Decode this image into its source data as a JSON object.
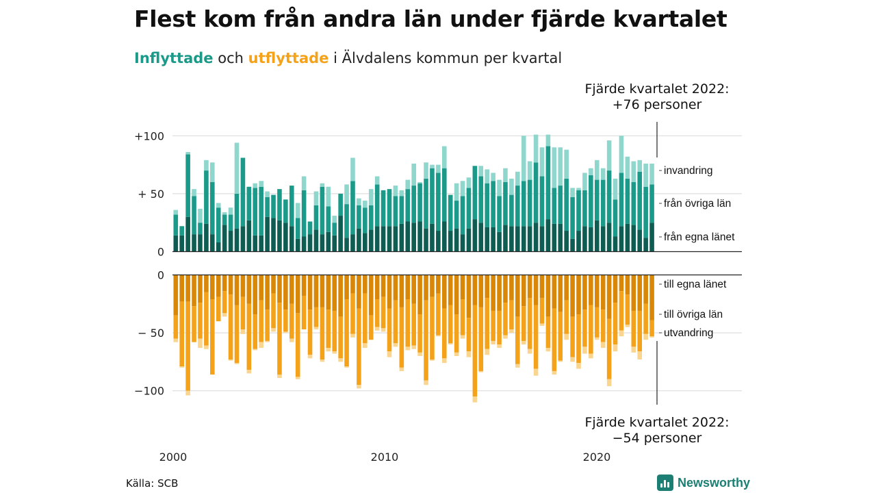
{
  "title": "Flest kom från andra län under fjärde kvartalet",
  "subtitle": {
    "in_word": "Inflyttade",
    "and_word": "och",
    "out_word": "utflyttade",
    "rest": "i Älvdalens kommun per kvartal"
  },
  "annotation_top": {
    "line1": "Fjärde kvartalet 2022:",
    "line2": "+76 personer"
  },
  "annotation_bottom": {
    "line1": "Fjärde kvartalet 2022:",
    "line2": "−54 personer"
  },
  "source": "Källa: SCB",
  "brand": {
    "name": "Newsworthy",
    "icon": "newsworthy-logo-icon",
    "color": "#1d7f74"
  },
  "colors": {
    "in_own": "#0e5c52",
    "in_other": "#1b9a89",
    "in_immigration": "#8fd6cd",
    "out_own": "#d98707",
    "out_other": "#f5a21b",
    "out_emigration": "#f9d58f"
  },
  "chart_data": {
    "type": "bar",
    "stacked": true,
    "grid": true,
    "x_tick_labels": [
      "2000",
      "2010",
      "2020"
    ],
    "top_panel": {
      "y_tick_labels": [
        "+100",
        "+ 50",
        "0"
      ],
      "ylim": [
        0,
        110
      ],
      "series": [
        {
          "name": "från egna länet",
          "values": [
            14,
            14,
            30,
            15,
            15,
            24,
            15,
            8,
            23,
            18,
            20,
            22,
            27,
            14,
            14,
            30,
            29,
            27,
            25,
            22,
            11,
            13,
            15,
            19,
            15,
            17,
            14,
            31,
            12,
            15,
            20,
            16,
            19,
            22,
            22,
            22,
            22,
            24,
            26,
            25,
            26,
            20,
            24,
            18,
            26,
            18,
            20,
            15,
            20,
            28,
            25,
            21,
            21,
            17,
            23,
            22,
            22,
            22,
            22,
            25,
            22,
            28,
            24,
            24,
            18,
            11,
            18,
            22,
            21,
            27,
            22,
            25,
            13,
            22,
            24,
            23,
            19,
            12,
            25
          ]
        },
        {
          "name": "från övriga län",
          "values": [
            18,
            8,
            54,
            33,
            10,
            46,
            45,
            30,
            9,
            14,
            30,
            59,
            29,
            41,
            42,
            17,
            20,
            27,
            20,
            35,
            18,
            40,
            11,
            21,
            41,
            22,
            11,
            19,
            29,
            46,
            20,
            22,
            21,
            36,
            31,
            32,
            26,
            24,
            28,
            32,
            33,
            43,
            48,
            50,
            46,
            31,
            24,
            33,
            35,
            46,
            40,
            38,
            40,
            31,
            37,
            27,
            35,
            39,
            40,
            52,
            43,
            63,
            31,
            33,
            45,
            36,
            35,
            31,
            45,
            35,
            40,
            45,
            32,
            46,
            39,
            37,
            50,
            44,
            33
          ]
        },
        {
          "name": "invandring",
          "values": [
            4,
            0,
            2,
            6,
            12,
            9,
            17,
            4,
            2,
            6,
            44,
            0,
            0,
            4,
            5,
            5,
            0,
            0,
            0,
            0,
            13,
            12,
            0,
            12,
            3,
            17,
            6,
            0,
            17,
            20,
            6,
            6,
            14,
            7,
            0,
            0,
            9,
            5,
            8,
            19,
            1,
            14,
            3,
            7,
            19,
            0,
            15,
            13,
            9,
            0,
            9,
            12,
            7,
            14,
            12,
            14,
            12,
            39,
            16,
            24,
            25,
            10,
            35,
            33,
            25,
            8,
            2,
            15,
            6,
            17,
            10,
            26,
            18,
            32,
            19,
            18,
            10,
            20,
            18
          ]
        }
      ]
    },
    "bottom_panel": {
      "y_tick_labels": [
        "0",
        "− 50",
        "−100"
      ],
      "ylim": [
        -110,
        0
      ],
      "series": [
        {
          "name": "till egna länet",
          "values": [
            -35,
            -23,
            -23,
            -27,
            -24,
            -15,
            -21,
            -19,
            -14,
            -17,
            -26,
            -19,
            -25,
            -34,
            -22,
            -30,
            -16,
            -24,
            -30,
            -25,
            -33,
            -18,
            -30,
            -28,
            -28,
            -30,
            -31,
            -36,
            -21,
            -16,
            -29,
            -16,
            -35,
            -21,
            -19,
            -29,
            -22,
            -28,
            -21,
            -25,
            -34,
            -22,
            -19,
            -16,
            -29,
            -26,
            -34,
            -21,
            -37,
            -26,
            -28,
            -20,
            -31,
            -31,
            -24,
            -22,
            -36,
            -27,
            -20,
            -26,
            -20,
            -36,
            -29,
            -32,
            -22,
            -36,
            -34,
            -30,
            -26,
            -28,
            -30,
            -38,
            -24,
            -14,
            -17,
            -31,
            -31,
            -25,
            -39
          ]
        },
        {
          "name": "till övriga län",
          "values": [
            -20,
            -56,
            -77,
            -31,
            -31,
            -46,
            -65,
            -21,
            -19,
            -56,
            -50,
            -28,
            -57,
            -30,
            -36,
            -27,
            -30,
            -62,
            -19,
            -30,
            -55,
            -29,
            -39,
            -17,
            -45,
            -33,
            -35,
            -36,
            -58,
            -35,
            -66,
            -43,
            -21,
            -24,
            -27,
            -37,
            -37,
            -52,
            -41,
            -36,
            -33,
            -69,
            -54,
            -36,
            -43,
            -33,
            -33,
            -31,
            -29,
            -79,
            -55,
            -44,
            -26,
            -29,
            -28,
            -25,
            -41,
            -30,
            -44,
            -55,
            -22,
            -27,
            -54,
            -42,
            -29,
            -35,
            -42,
            -32,
            -42,
            -26,
            -28,
            -52,
            -36,
            -34,
            -26,
            -31,
            -35,
            -26,
            -14
          ]
        },
        {
          "name": "utvandring",
          "values": [
            -3,
            -1,
            -4,
            0,
            -8,
            -3,
            0,
            0,
            -3,
            -1,
            -1,
            -4,
            -3,
            -1,
            -5,
            -1,
            -3,
            -3,
            -1,
            -3,
            -2,
            0,
            -3,
            -2,
            -2,
            -3,
            -2,
            -3,
            -1,
            -3,
            -3,
            -4,
            0,
            -3,
            -3,
            -5,
            -3,
            -3,
            -3,
            -3,
            -3,
            -4,
            -1,
            -1,
            -4,
            -1,
            -3,
            -3,
            -5,
            -5,
            -1,
            -5,
            -3,
            -3,
            -3,
            -3,
            -3,
            -3,
            -4,
            -6,
            -2,
            -3,
            -3,
            -1,
            -5,
            -4,
            -5,
            -6,
            -4,
            -2,
            -5,
            -6,
            -6,
            -5,
            -2,
            -5,
            -7,
            -5,
            -1
          ]
        }
      ]
    }
  }
}
